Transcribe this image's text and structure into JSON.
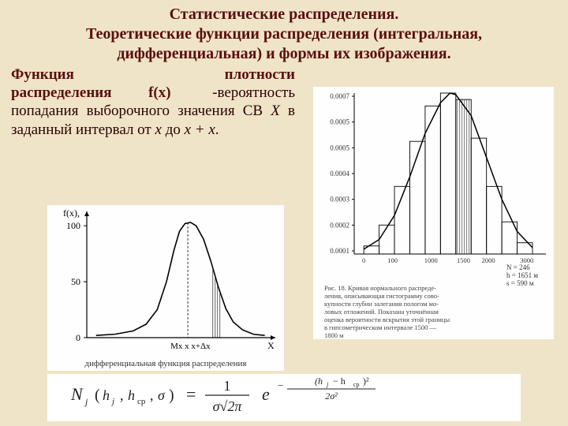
{
  "title": {
    "line1": "Статистические распределения.",
    "line2": "Теоретические функции распределения (интегральная,",
    "line3": "дифференциальная) и формы их изображения."
  },
  "body": {
    "b1": "Функция",
    "b2": "плотности",
    "b3": "распределения",
    "b4": "f(x)",
    "b5": "-вероятность",
    "b6": "попадания выборочного значения СВ ",
    "b7": "Х",
    "b8": " в заданный интервал от ",
    "b9": "х",
    "b10": " до ",
    "b11": "х + х",
    "b12": "."
  },
  "leftChart": {
    "type": "line",
    "title_fontsize": 12,
    "axis_label_y": "f(x),",
    "yticks": [
      0,
      50,
      100
    ],
    "caption": "дифференциальная функция распределения",
    "xlabel_Mx": "Mx x x+Δx",
    "xlabel_X": "X",
    "background_color": "#fefefe",
    "line_color": "#000000",
    "grid_color": "#808080",
    "xlim": [
      0,
      10
    ],
    "ylim": [
      0,
      110
    ],
    "curve": [
      [
        0.5,
        2
      ],
      [
        1.5,
        3
      ],
      [
        2.5,
        6
      ],
      [
        3.2,
        12
      ],
      [
        3.8,
        25
      ],
      [
        4.3,
        50
      ],
      [
        4.7,
        78
      ],
      [
        5.0,
        95
      ],
      [
        5.3,
        102
      ],
      [
        5.6,
        103
      ],
      [
        5.9,
        100
      ],
      [
        6.3,
        88
      ],
      [
        6.7,
        68
      ],
      [
        7.1,
        45
      ],
      [
        7.5,
        26
      ],
      [
        7.9,
        14
      ],
      [
        8.4,
        7
      ],
      [
        9,
        3
      ],
      [
        9.6,
        2
      ]
    ],
    "hatch_x": [
      6.8,
      7.3
    ],
    "hatch_color": "#000000"
  },
  "rightChart": {
    "type": "histogram",
    "background_color": "#fefefe",
    "line_color": "#000000",
    "yticks": [
      "0.0007",
      "0.0005",
      "0.0005",
      "0.0004",
      "0.0003",
      "0.0002",
      "0.0001"
    ],
    "xticks": [
      "0",
      "100",
      "1000",
      "1500",
      "2000",
      "3000"
    ],
    "caption1": "Рис. 18. Кривая нормального распреде-",
    "caption2": "ления, описывающая гистограмму сово-",
    "caption3": "купности глубин залегания пологом мо-",
    "caption4": "ловых отложений. Показана уточнённая",
    "caption5": "оценка вероятности вскрытия этой границы",
    "caption6": "в гипсометрическом интервале 1500 —",
    "caption7": "1800 м",
    "bars": [
      {
        "x0": 0.5,
        "x1": 1.3,
        "h": 0.05
      },
      {
        "x0": 1.3,
        "x1": 2.1,
        "h": 0.18
      },
      {
        "x0": 2.1,
        "x1": 2.9,
        "h": 0.42
      },
      {
        "x0": 2.9,
        "x1": 3.7,
        "h": 0.7
      },
      {
        "x0": 3.7,
        "x1": 4.5,
        "h": 0.92
      },
      {
        "x0": 4.5,
        "x1": 5.3,
        "h": 1.0
      },
      {
        "x0": 5.3,
        "x1": 6.1,
        "h": 0.96
      },
      {
        "x0": 6.1,
        "x1": 6.9,
        "h": 0.72
      },
      {
        "x0": 6.9,
        "x1": 7.7,
        "h": 0.42
      },
      {
        "x0": 7.7,
        "x1": 8.5,
        "h": 0.2
      },
      {
        "x0": 8.5,
        "x1": 9.3,
        "h": 0.07
      }
    ],
    "curve": [
      [
        0.5,
        0.03
      ],
      [
        1.3,
        0.09
      ],
      [
        2.1,
        0.24
      ],
      [
        2.9,
        0.48
      ],
      [
        3.7,
        0.75
      ],
      [
        4.5,
        0.94
      ],
      [
        5.0,
        1.0
      ],
      [
        5.3,
        0.99
      ],
      [
        6.1,
        0.86
      ],
      [
        6.9,
        0.6
      ],
      [
        7.7,
        0.34
      ],
      [
        8.5,
        0.14
      ],
      [
        9.3,
        0.04
      ]
    ],
    "hatch_bar_index": 6,
    "params": {
      "N": "N = 246",
      "h": "h = 1651 м",
      "s": "s = 590 м"
    }
  },
  "formula": {
    "lhs_N": "N",
    "lhs_j": "j",
    "lhs_args": "(h_j , h_cp , σ)",
    "eq": "=",
    "frac_top": "1",
    "frac_bot": "σ√2π",
    "e": "e",
    "exp_top": "(h_j − h_cp)²",
    "exp_bot": "2σ²",
    "minus": "−"
  },
  "colors": {
    "page_bg": "#f0e4c8",
    "text": "#5a0e0e",
    "chart_bg": "#fefefe",
    "axis": "#000000",
    "caption": "#3a3a3a"
  }
}
